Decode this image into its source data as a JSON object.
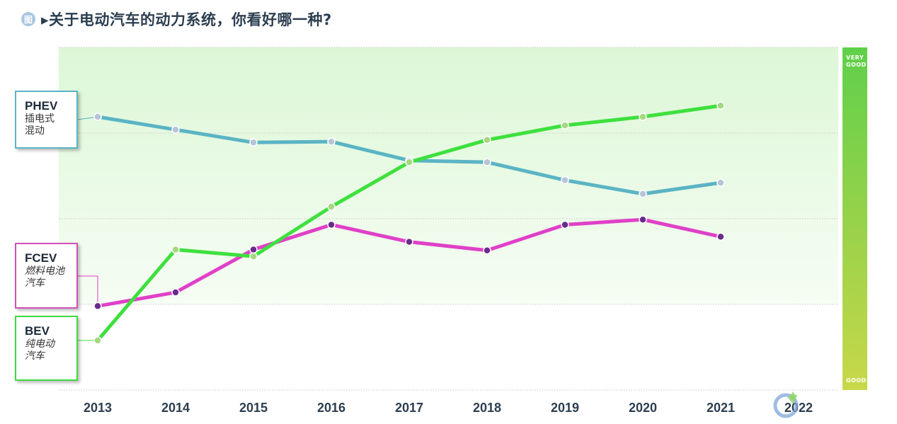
{
  "title": "▸关于电动汽车的动力系统，你看好哪一种?",
  "figure_badge": "图",
  "scale": {
    "top": "VERY\nGOOD",
    "bottom": "GOOD"
  },
  "labels": {
    "phev": {
      "code": "PHEV",
      "desc": "插电式\n混动"
    },
    "fcev": {
      "code": "FCEV",
      "desc": "燃料电池\n汽车"
    },
    "bev": {
      "code": "BEV",
      "desc": "纯电动\n汽车"
    }
  },
  "colors": {
    "phev": "#5ab4c4",
    "fcev": "#e040c8",
    "bev": "#3ee03e",
    "marker_phev": "#b8c4d6",
    "marker_fcev": "#6a2c8c",
    "marker_bev": "#a6d880"
  },
  "chart_data": {
    "type": "line",
    "title": "关于电动汽车的动力系统，你看好哪一种?",
    "x": [
      "2013",
      "2014",
      "2015",
      "2016",
      "2017",
      "2018",
      "2019",
      "2020",
      "2021",
      "2022"
    ],
    "y_scale": "rating from GOOD (bottom) to VERY GOOD (top)",
    "ylim": [
      0,
      4
    ],
    "grid": true,
    "series": [
      {
        "name": "PHEV",
        "values": [
          3.19,
          3.04,
          2.89,
          2.9,
          2.68,
          2.66,
          2.45,
          2.29,
          2.42,
          null
        ]
      },
      {
        "name": "FCEV",
        "values": [
          0.98,
          1.14,
          1.64,
          1.93,
          1.73,
          1.63,
          1.93,
          1.99,
          1.79,
          null
        ]
      },
      {
        "name": "BEV",
        "values": [
          0.58,
          1.64,
          1.56,
          2.14,
          2.66,
          2.92,
          3.09,
          3.19,
          3.32,
          null
        ]
      }
    ]
  }
}
